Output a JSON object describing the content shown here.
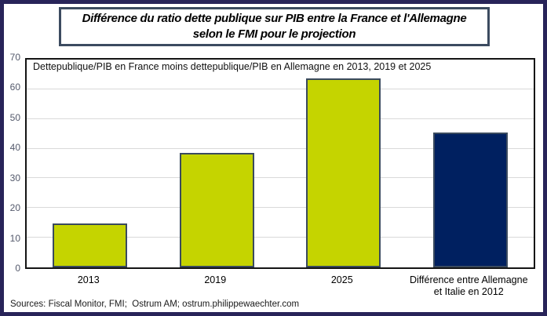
{
  "window": {
    "outer_border_color": "#282459"
  },
  "chart_data": {
    "type": "bar",
    "title": "Différence du ratio dette publique sur PIB  entre la France et l'Allemagne selon le FMI pour le projection",
    "subtitle": "Dettepublique/PIB en France moins dettepublique/PIB en Allemagne en 2013, 2019 et 2025",
    "categories": [
      "2013",
      "2019",
      "2025",
      "Différence entre Allemagne et Italie en 2012"
    ],
    "values": [
      14.7,
      38.7,
      63.7,
      45.5
    ],
    "bar_colors": [
      "#c5d400",
      "#c5d400",
      "#c5d400",
      "#002060"
    ],
    "bar_border_color": "#3a4a5e",
    "xlabel": "",
    "ylabel": "",
    "ylim": [
      0,
      70
    ],
    "yticks": [
      0,
      10,
      20,
      30,
      40,
      50,
      60,
      70
    ],
    "grid": true,
    "gridline_color": "#d9d9d9",
    "legend": "none"
  },
  "footer": {
    "sources": "Sources: Fiscal Monitor, FMI;  Ostrum AM; ostrum.philippewaechter.com"
  }
}
